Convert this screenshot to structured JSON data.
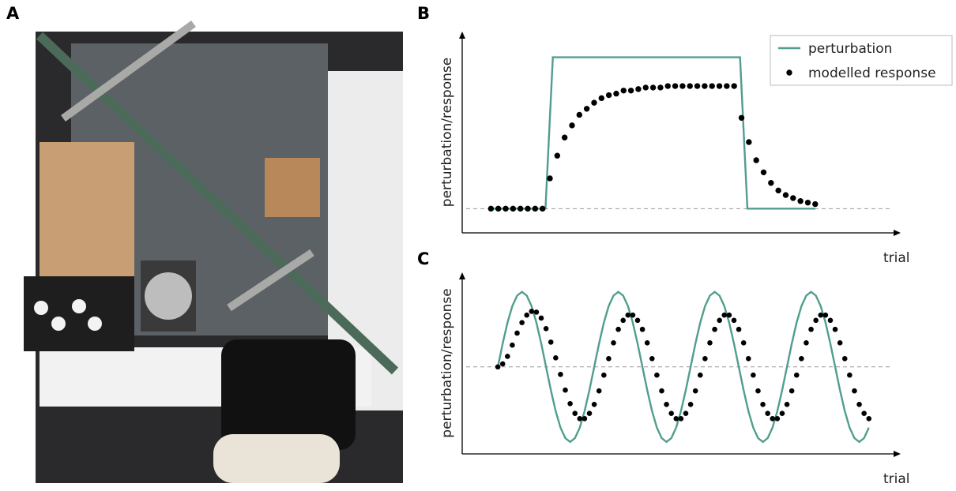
{
  "photo": {
    "label": "A"
  },
  "chart_data": [
    {
      "type": "line",
      "label": "B",
      "y_label": "perturbation/response",
      "x_label": "trial",
      "reference_line": 0,
      "legend": "upper right",
      "xlim": [
        -3.9,
        55.6
      ],
      "ylim": [
        -0.16,
        1.17
      ],
      "x": [
        0,
        1,
        2,
        3,
        4,
        5,
        6,
        7,
        8,
        9,
        10,
        11,
        12,
        13,
        14,
        15,
        16,
        17,
        18,
        19,
        20,
        21,
        22,
        23,
        24,
        25,
        26,
        27,
        28,
        29,
        30,
        31,
        32,
        33,
        34,
        35,
        36,
        37,
        38,
        39,
        40,
        41,
        42,
        43,
        44
      ],
      "series": [
        {
          "name": "perturbation",
          "color": "#519d8f",
          "style": "line",
          "x": [
            0,
            7.4,
            8.4,
            33.8,
            34.8,
            44
          ],
          "values": [
            0,
            0,
            1,
            1,
            0,
            0
          ]
        },
        {
          "name": "modelled response",
          "color": "#000000",
          "style": "scatter",
          "values": [
            0,
            0,
            0,
            0,
            0,
            0,
            0,
            0,
            0.2,
            0.35,
            0.47,
            0.55,
            0.62,
            0.66,
            0.7,
            0.73,
            0.75,
            0.76,
            0.78,
            0.78,
            0.79,
            0.8,
            0.8,
            0.8,
            0.81,
            0.81,
            0.81,
            0.81,
            0.81,
            0.81,
            0.81,
            0.81,
            0.81,
            0.81,
            0.6,
            0.44,
            0.32,
            0.24,
            0.17,
            0.12,
            0.09,
            0.07,
            0.05,
            0.04,
            0.03
          ]
        }
      ]
    },
    {
      "type": "line",
      "label": "C",
      "y_label": "perturbation/response",
      "x_label": "trial",
      "reference_line": 0,
      "xlim": [
        -7.4,
        83.6
      ],
      "ylim": [
        -1.16,
        1.26
      ],
      "x": [
        0,
        1,
        2,
        3,
        4,
        5,
        6,
        7,
        8,
        9,
        10,
        11,
        12,
        13,
        14,
        15,
        16,
        17,
        18,
        19,
        20,
        21,
        22,
        23,
        24,
        25,
        26,
        27,
        28,
        29,
        30,
        31,
        32,
        33,
        34,
        35,
        36,
        37,
        38,
        39,
        40,
        41,
        42,
        43,
        44,
        45,
        46,
        47,
        48,
        49,
        50,
        51,
        52,
        53,
        54,
        55,
        56,
        57,
        58,
        59,
        60,
        61,
        62,
        63,
        64,
        65,
        66,
        67,
        68,
        69,
        70,
        71,
        72,
        73,
        74,
        75,
        76,
        77
      ],
      "series": [
        {
          "color": "#519d8f",
          "style": "line",
          "values": [
            0,
            0.31,
            0.59,
            0.81,
            0.95,
            1,
            0.95,
            0.81,
            0.59,
            0.31,
            0,
            -0.31,
            -0.59,
            -0.81,
            -0.95,
            -1,
            -0.95,
            -0.81,
            -0.59,
            -0.31,
            0,
            0.31,
            0.59,
            0.81,
            0.95,
            1,
            0.95,
            0.81,
            0.59,
            0.31,
            0,
            -0.31,
            -0.59,
            -0.81,
            -0.95,
            -1,
            -0.95,
            -0.81,
            -0.59,
            -0.31,
            0,
            0.31,
            0.59,
            0.81,
            0.95,
            1,
            0.95,
            0.81,
            0.59,
            0.31,
            0,
            -0.31,
            -0.59,
            -0.81,
            -0.95,
            -1,
            -0.95,
            -0.81,
            -0.59,
            -0.31,
            0,
            0.31,
            0.59,
            0.81,
            0.95,
            1,
            0.95,
            0.81,
            0.59,
            0.31,
            0,
            -0.31,
            -0.59,
            -0.81,
            -0.95,
            -1,
            -0.95,
            -0.81
          ]
        },
        {
          "color": "#000000",
          "style": "scatter",
          "values": [
            0,
            0.04,
            0.14,
            0.29,
            0.45,
            0.59,
            0.69,
            0.74,
            0.73,
            0.65,
            0.51,
            0.33,
            0.12,
            -0.1,
            -0.31,
            -0.49,
            -0.62,
            -0.69,
            -0.69,
            -0.62,
            -0.5,
            -0.32,
            -0.11,
            0.11,
            0.32,
            0.5,
            0.62,
            0.69,
            0.69,
            0.62,
            0.5,
            0.32,
            0.11,
            -0.11,
            -0.32,
            -0.5,
            -0.62,
            -0.69,
            -0.69,
            -0.62,
            -0.5,
            -0.32,
            -0.11,
            0.11,
            0.32,
            0.5,
            0.62,
            0.69,
            0.69,
            0.62,
            0.5,
            0.32,
            0.11,
            -0.11,
            -0.32,
            -0.5,
            -0.62,
            -0.69,
            -0.69,
            -0.62,
            -0.5,
            -0.32,
            -0.11,
            0.11,
            0.32,
            0.5,
            0.62,
            0.69,
            0.69,
            0.62,
            0.5,
            0.32,
            0.11,
            -0.11,
            -0.32,
            -0.5,
            -0.62,
            -0.69
          ]
        }
      ]
    }
  ]
}
